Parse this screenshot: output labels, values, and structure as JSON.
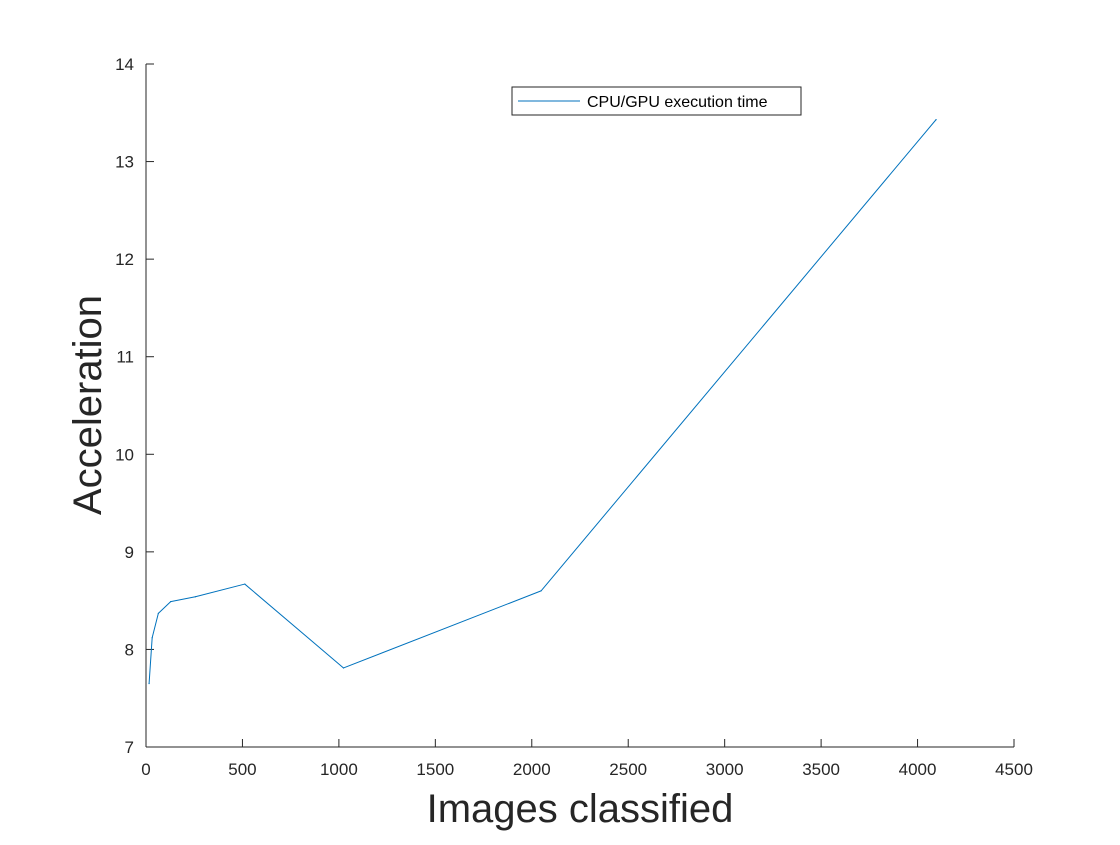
{
  "chart_data": {
    "type": "line",
    "title": "",
    "xlabel": "Images classified",
    "ylabel": "Acceleration",
    "xlim": [
      0,
      4500
    ],
    "ylim": [
      7,
      14
    ],
    "xticks": [
      "0",
      "500",
      "1000",
      "1500",
      "2000",
      "2500",
      "3000",
      "3500",
      "4000",
      "4500"
    ],
    "yticks": [
      "7",
      "8",
      "9",
      "10",
      "11",
      "12",
      "13",
      "14"
    ],
    "grid": false,
    "legend_position": "top-center",
    "series": [
      {
        "name": "CPU/GPU execution time",
        "color": "#0072bd",
        "x": [
          16,
          32,
          64,
          128,
          256,
          512,
          1024,
          2048,
          4096
        ],
        "y": [
          7.65,
          8.12,
          8.37,
          8.49,
          8.54,
          8.67,
          7.81,
          8.6,
          13.43
        ]
      }
    ]
  }
}
